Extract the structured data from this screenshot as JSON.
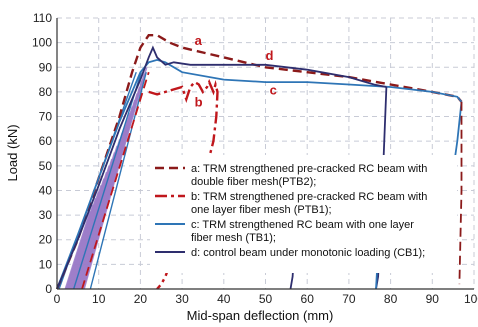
{
  "chart_data": {
    "type": "line",
    "xlabel": "Mid-span deflection (mm)",
    "ylabel": "Load (kN)",
    "xlim": [
      0,
      100
    ],
    "ylim": [
      0,
      110
    ],
    "xticks": [
      0,
      10,
      20,
      30,
      40,
      50,
      60,
      70,
      80,
      90,
      100
    ],
    "yticks": [
      0,
      10,
      20,
      30,
      40,
      50,
      60,
      70,
      80,
      90,
      100,
      110
    ],
    "grid": true,
    "legend_position": "lower-right",
    "series": [
      {
        "key": "a",
        "name": "a: TRM strengthened pre-cracked RC beam with double fiber mesh(PTB2);",
        "color": "#8B1A1A",
        "dash": "dashed",
        "x": [
          0,
          5,
          10,
          15,
          18,
          20,
          22,
          24,
          27,
          30,
          35,
          40,
          50,
          60,
          70,
          80,
          90,
          96,
          97
        ],
        "y": [
          0,
          20,
          45,
          70,
          88,
          98,
          103,
          103,
          100,
          98,
          96,
          94,
          90,
          88,
          86,
          83,
          80,
          78,
          76
        ]
      },
      {
        "key": "b",
        "name": "b: TRM strengthened pre-cracked RC beam with one layer fiber mesh (PTB1);",
        "color": "#C0171C",
        "dash": "dashdot",
        "x": [
          22,
          24,
          26,
          28,
          30,
          31,
          32,
          33,
          34,
          35,
          36,
          36.5,
          37,
          37.5,
          38,
          38.5,
          38.2,
          37.5,
          36,
          34,
          31,
          29,
          28,
          27,
          26,
          25,
          24
        ],
        "y": [
          80,
          79,
          80,
          81,
          82,
          77,
          82,
          84,
          83,
          80,
          82,
          84,
          82,
          80,
          83,
          80,
          70,
          60,
          50,
          40,
          30,
          20,
          15,
          10,
          5,
          2,
          0
        ]
      },
      {
        "key": "c",
        "name": "c: TRM strengthened RC beam with one layer fiber mesh (TB1);",
        "color": "#2E75B6",
        "dash": "solid",
        "x": [
          0,
          5,
          10,
          15,
          20,
          22,
          24,
          26,
          30,
          40,
          50,
          60,
          70,
          80,
          90,
          96,
          97
        ],
        "y": [
          0,
          22,
          45,
          68,
          88,
          92,
          93,
          92,
          88,
          85,
          84,
          84,
          83,
          82,
          80,
          78,
          76
        ]
      },
      {
        "key": "d",
        "name": "d: control beam under monotonic loading (CB1);",
        "color": "#2E2E6E",
        "dash": "solid",
        "x": [
          0,
          5,
          10,
          15,
          20,
          22,
          23,
          24,
          26,
          28,
          32,
          40,
          50,
          60,
          70,
          76,
          79
        ],
        "y": [
          0,
          20,
          42,
          65,
          85,
          94,
          98,
          94,
          91,
          92,
          91,
          91,
          91,
          89,
          86,
          83,
          82
        ]
      }
    ],
    "unloading_branches": [
      {
        "series": "d",
        "x": [
          79,
          78,
          77,
          76.5
        ],
        "y": [
          82,
          40,
          5,
          0
        ]
      },
      {
        "series": "d",
        "x": [
          57,
          56.5,
          56
        ],
        "y": [
          18,
          5,
          0
        ]
      },
      {
        "series": "c",
        "x": [
          97,
          96,
          93.5,
          91.5
        ],
        "y": [
          76,
          60,
          30,
          10
        ]
      },
      {
        "series": "c",
        "x": [
          77,
          76.5
        ],
        "y": [
          15,
          0
        ]
      },
      {
        "series": "a",
        "x": [
          97,
          97,
          96.5
        ],
        "y": [
          76,
          40,
          2
        ]
      }
    ],
    "cyclic_band": {
      "color": "#9B7BC8",
      "x_start_base": [
        2,
        6.5
      ],
      "x_start_top": [
        19,
        21.5
      ],
      "y_top": 90
    },
    "annotations": [
      {
        "text": "a",
        "color": "#C0171C",
        "x": 33,
        "y": 99
      },
      {
        "text": "d",
        "color": "#C0171C",
        "x": 50,
        "y": 93
      },
      {
        "text": "c",
        "color": "#C0171C",
        "x": 51,
        "y": 79
      },
      {
        "text": "b",
        "color": "#C0171C",
        "x": 33,
        "y": 74
      }
    ]
  }
}
